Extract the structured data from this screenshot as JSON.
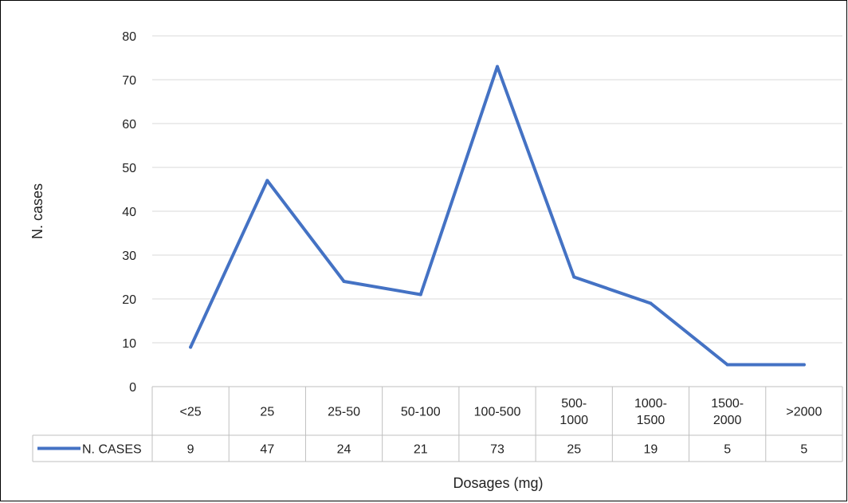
{
  "chart_data": {
    "type": "line",
    "categories": [
      "<25",
      "25",
      "25-50",
      "50-100",
      "100-500",
      "500-\n1000",
      "1000-\n1500",
      "1500-\n2000",
      ">2000"
    ],
    "series": [
      {
        "name": "N. CASES",
        "values": [
          9,
          47,
          24,
          21,
          73,
          25,
          19,
          5,
          5
        ],
        "color": "#4472C4"
      }
    ],
    "xlabel": "Dosages (mg)",
    "ylabel": "N. cases",
    "ylim": [
      0,
      80
    ],
    "yticks": [
      0,
      10,
      20,
      30,
      40,
      50,
      60,
      70,
      80
    ],
    "grid": true,
    "legend": "data-table",
    "gridline_color": "#d9d9d9",
    "table_border_color": "#bfbfbf"
  }
}
